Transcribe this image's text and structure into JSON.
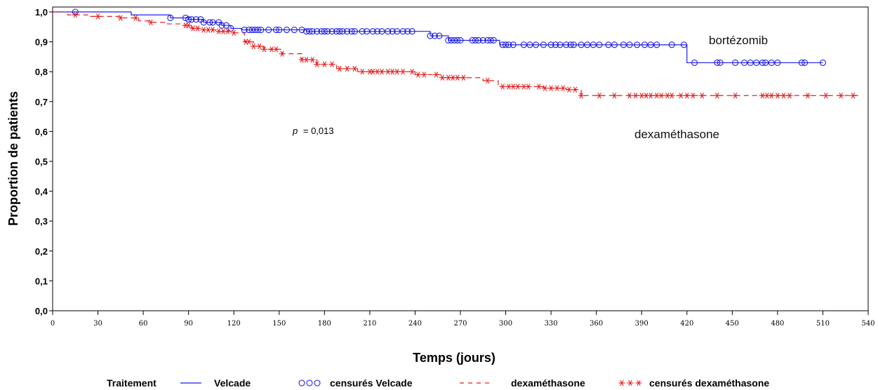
{
  "chart_data": {
    "type": "line",
    "title": "",
    "xlabel": "Temps (jours)",
    "ylabel": "Proportion de patients",
    "xlim": [
      0,
      540
    ],
    "ylim": [
      0.0,
      1.0
    ],
    "xticks": [
      0,
      30,
      60,
      90,
      120,
      150,
      180,
      210,
      240,
      270,
      300,
      330,
      360,
      390,
      420,
      450,
      480,
      510,
      540
    ],
    "xtick_labels": [
      "0",
      "30",
      "60",
      "90",
      "120",
      "150",
      "180",
      "210",
      "240",
      "270",
      "300",
      "330",
      "360",
      "390",
      "420",
      "450",
      "480",
      "510",
      "540"
    ],
    "yticks": [
      0.0,
      0.1,
      0.2,
      0.3,
      0.4,
      0.5,
      0.6,
      0.7,
      0.8,
      0.9,
      1.0
    ],
    "ytick_labels": [
      "0,0",
      "0,1",
      "0,2",
      "0,3",
      "0,4",
      "0,5",
      "0,6",
      "0,7",
      "0,8",
      "0,9",
      "1,0"
    ],
    "grid": false,
    "legend_placement": "bottom",
    "legend_title": "Traitement",
    "legend_labels": {
      "velcade": "Velcade",
      "velcade_censored": "censurés Velcade",
      "dexa": "dexaméthasone",
      "dexa_censored": "censurés dexaméthasone"
    },
    "annotations": {
      "bortezomib": "bortézomib",
      "dexamethasone": "dexaméthasone",
      "p_label": "p",
      "p_value": "= 0,013"
    },
    "series": [
      {
        "name": "Velcade",
        "color": "#1f1fe6",
        "style": "solid",
        "marker": "circle",
        "steps": [
          [
            0,
            1.0
          ],
          [
            52,
            0.99
          ],
          [
            78,
            0.98
          ],
          [
            90,
            0.975
          ],
          [
            100,
            0.965
          ],
          [
            112,
            0.955
          ],
          [
            118,
            0.945
          ],
          [
            125,
            0.94
          ],
          [
            168,
            0.935
          ],
          [
            250,
            0.92
          ],
          [
            262,
            0.905
          ],
          [
            296,
            0.89
          ],
          [
            420,
            0.83
          ],
          [
            510,
            0.83
          ]
        ],
        "censored_x": [
          15,
          78,
          88,
          90,
          92,
          95,
          98,
          100,
          104,
          106,
          110,
          112,
          115,
          118,
          127,
          130,
          132,
          134,
          136,
          138,
          143,
          148,
          150,
          155,
          160,
          165,
          168,
          170,
          172,
          175,
          178,
          180,
          182,
          185,
          188,
          190,
          192,
          195,
          198,
          200,
          205,
          208,
          212,
          215,
          218,
          222,
          225,
          228,
          232,
          235,
          238,
          250,
          253,
          256,
          262,
          264,
          266,
          268,
          270,
          278,
          280,
          282,
          285,
          288,
          290,
          292,
          298,
          300,
          302,
          305,
          312,
          316,
          320,
          325,
          330,
          333,
          336,
          340,
          343,
          345,
          350,
          354,
          358,
          362,
          368,
          372,
          378,
          382,
          387,
          392,
          396,
          400,
          410,
          418,
          425,
          440,
          442,
          452,
          458,
          462,
          466,
          470,
          472,
          476,
          480,
          496,
          498,
          510
        ]
      },
      {
        "name": "dexaméthasone",
        "color": "#e61c1c",
        "style": "dashed",
        "marker": "star",
        "steps": [
          [
            0,
            1.0
          ],
          [
            10,
            0.99
          ],
          [
            25,
            0.985
          ],
          [
            45,
            0.98
          ],
          [
            57,
            0.97
          ],
          [
            65,
            0.965
          ],
          [
            75,
            0.96
          ],
          [
            85,
            0.955
          ],
          [
            92,
            0.945
          ],
          [
            100,
            0.94
          ],
          [
            108,
            0.935
          ],
          [
            120,
            0.93
          ],
          [
            127,
            0.9
          ],
          [
            133,
            0.885
          ],
          [
            140,
            0.875
          ],
          [
            152,
            0.86
          ],
          [
            165,
            0.84
          ],
          [
            175,
            0.825
          ],
          [
            188,
            0.81
          ],
          [
            202,
            0.8
          ],
          [
            240,
            0.79
          ],
          [
            258,
            0.78
          ],
          [
            285,
            0.77
          ],
          [
            295,
            0.75
          ],
          [
            325,
            0.745
          ],
          [
            340,
            0.74
          ],
          [
            350,
            0.72
          ],
          [
            535,
            0.72
          ]
        ],
        "censored_x": [
          15,
          30,
          45,
          55,
          65,
          88,
          90,
          93,
          96,
          100,
          103,
          106,
          110,
          113,
          116,
          120,
          128,
          130,
          133,
          137,
          140,
          145,
          148,
          152,
          165,
          168,
          172,
          175,
          180,
          185,
          190,
          195,
          200,
          205,
          210,
          212,
          215,
          218,
          222,
          225,
          228,
          232,
          238,
          242,
          246,
          254,
          258,
          262,
          265,
          268,
          272,
          288,
          298,
          302,
          305,
          308,
          312,
          315,
          322,
          326,
          330,
          334,
          338,
          342,
          346,
          350,
          362,
          372,
          382,
          386,
          390,
          393,
          396,
          400,
          403,
          407,
          410,
          416,
          420,
          424,
          430,
          440,
          452,
          470,
          473,
          476,
          480,
          484,
          488,
          500,
          512,
          522,
          530
        ]
      }
    ]
  }
}
